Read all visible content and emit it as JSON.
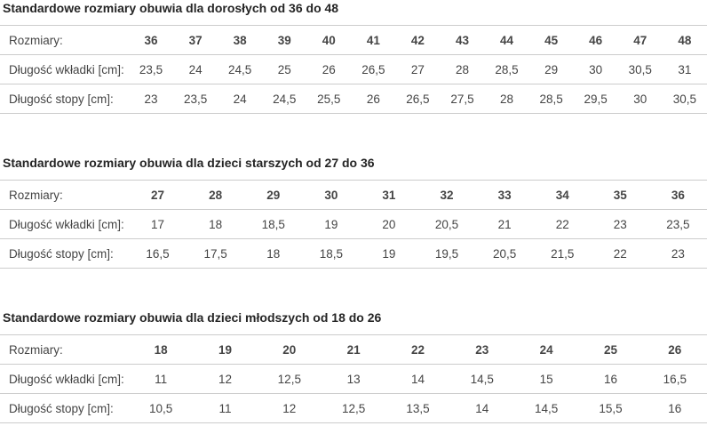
{
  "page": {
    "background": "#ffffff",
    "title_color": "#252525",
    "text_color": "#454545",
    "border_color": "#cccccc"
  },
  "tables": [
    {
      "title": "Standardowe rozmiary obuwia dla dorosłych od 36 do 48",
      "rows": [
        {
          "label": "Rozmiary:",
          "values": [
            "36",
            "37",
            "38",
            "39",
            "40",
            "41",
            "42",
            "43",
            "44",
            "45",
            "46",
            "47",
            "48"
          ]
        },
        {
          "label": "Długość wkładki [cm]:",
          "values": [
            "23,5",
            "24",
            "24,5",
            "25",
            "26",
            "26,5",
            "27",
            "28",
            "28,5",
            "29",
            "30",
            "30,5",
            "31"
          ]
        },
        {
          "label": "Długość stopy [cm]:",
          "values": [
            "23",
            "23,5",
            "24",
            "24,5",
            "25,5",
            "26",
            "26,5",
            "27,5",
            "28",
            "28,5",
            "29,5",
            "30",
            "30,5"
          ]
        }
      ]
    },
    {
      "title": "Standardowe rozmiary obuwia dla dzieci starszych od 27 do 36",
      "rows": [
        {
          "label": "Rozmiary:",
          "values": [
            "27",
            "28",
            "29",
            "30",
            "31",
            "32",
            "33",
            "34",
            "35",
            "36"
          ]
        },
        {
          "label": "Długość wkładki [cm]:",
          "values": [
            "17",
            "18",
            "18,5",
            "19",
            "20",
            "20,5",
            "21",
            "22",
            "23",
            "23,5"
          ]
        },
        {
          "label": "Długość stopy [cm]:",
          "values": [
            "16,5",
            "17,5",
            "18",
            "18,5",
            "19",
            "19,5",
            "20,5",
            "21,5",
            "22",
            "23"
          ]
        }
      ]
    },
    {
      "title": "Standardowe rozmiary obuwia dla dzieci młodszych od 18 do 26",
      "rows": [
        {
          "label": "Rozmiary:",
          "values": [
            "18",
            "19",
            "20",
            "21",
            "22",
            "23",
            "24",
            "25",
            "26"
          ]
        },
        {
          "label": "Długość wkładki [cm]:",
          "values": [
            "11",
            "12",
            "12,5",
            "13",
            "14",
            "14,5",
            "15",
            "16",
            "16,5"
          ]
        },
        {
          "label": "Długość stopy [cm]:",
          "values": [
            "10,5",
            "11",
            "12",
            "12,5",
            "13,5",
            "14",
            "14,5",
            "15,5",
            "16"
          ]
        }
      ]
    }
  ]
}
